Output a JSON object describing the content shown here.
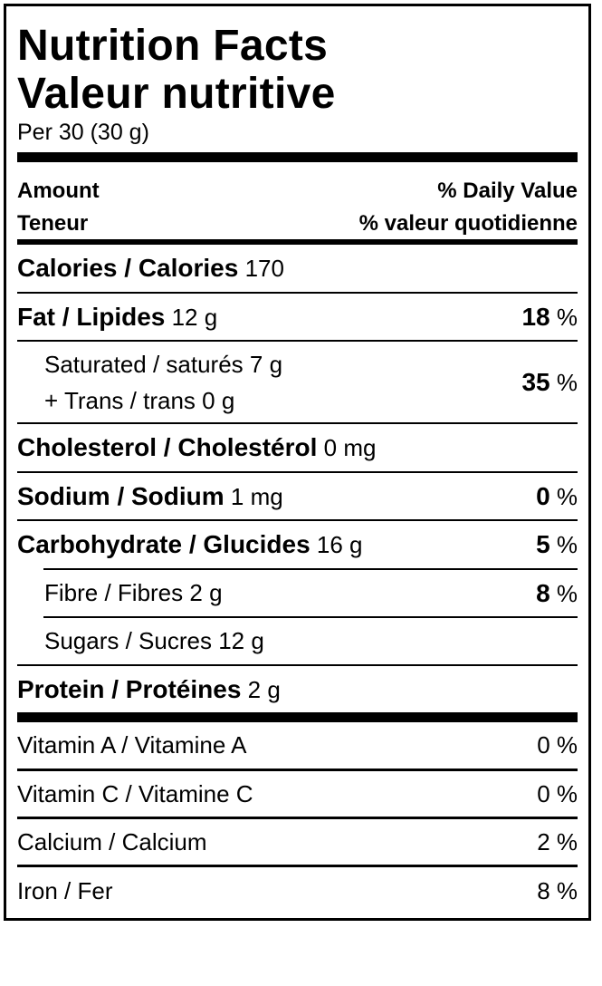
{
  "title": {
    "en": "Nutrition Facts",
    "fr": "Valeur nutritive"
  },
  "serving": "Per 30 (30 g)",
  "header": {
    "amount_en": "Amount",
    "amount_fr": "Teneur",
    "dv_en": "% Daily Value",
    "dv_fr": "% valeur quotidienne"
  },
  "calories": {
    "label": "Calories / Calories",
    "value": "170"
  },
  "fat": {
    "label": "Fat / Lipides",
    "amount": "12 g",
    "dv": "18",
    "unit": "%"
  },
  "saturated": {
    "label": "Saturated / saturés",
    "amount": "7 g",
    "trans_label": "+ Trans / trans",
    "trans_amount": "0 g",
    "dv": "35",
    "unit": "%"
  },
  "cholesterol": {
    "label": "Cholesterol / Cholestérol",
    "amount": "0 mg"
  },
  "sodium": {
    "label": "Sodium / Sodium",
    "amount": "1 mg",
    "dv": "0",
    "unit": "%"
  },
  "carbohydrate": {
    "label": "Carbohydrate / Glucides",
    "amount": "16 g",
    "dv": "5",
    "unit": "%"
  },
  "fibre": {
    "label": "Fibre / Fibres",
    "amount": "2 g",
    "dv": "8",
    "unit": "%"
  },
  "sugars": {
    "label": "Sugars / Sucres",
    "amount": "12 g"
  },
  "protein": {
    "label": "Protein / Protéines",
    "amount": "2 g"
  },
  "vitamins": [
    {
      "label": "Vitamin A / Vitamine A",
      "dv": "0 %"
    },
    {
      "label": "Vitamin C / Vitamine C",
      "dv": "0 %"
    },
    {
      "label": "Calcium / Calcium",
      "dv": "2 %"
    },
    {
      "label": "Iron / Fer",
      "dv": "8 %"
    }
  ]
}
